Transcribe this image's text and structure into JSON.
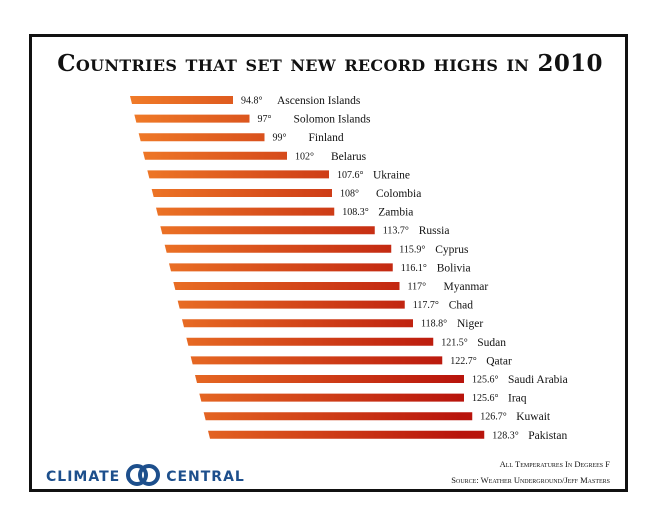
{
  "title": "Countries that set new record highs in 2010",
  "logo": {
    "left": "CLIMATE",
    "right": "CENTRAL",
    "color": "#1d4f8c"
  },
  "note": "All Temperatures In Degrees F",
  "source": "Source: Weather Underground/Jeff Masters",
  "chart_data": {
    "type": "bar",
    "orientation": "horizontal",
    "title": "Countries that set new record highs in 2010",
    "categories": [
      "Ascension Islands",
      "Solomon Islands",
      "Finland",
      "Belarus",
      "Ukraine",
      "Colombia",
      "Zambia",
      "Russia",
      "Cyprus",
      "Bolivia",
      "Myanmar",
      "Chad",
      "Niger",
      "Sudan",
      "Qatar",
      "Saudi Arabia",
      "Iraq",
      "Kuwait",
      "Pakistan"
    ],
    "values": [
      94.8,
      97,
      99,
      102,
      107.6,
      108,
      108.3,
      113.7,
      115.9,
      116.1,
      117,
      117.7,
      118.8,
      121.5,
      122.7,
      125.6,
      125.6,
      126.7,
      128.3
    ],
    "value_labels": [
      "94.8°",
      "97°",
      "99°",
      "102°",
      "107.6°",
      "108°",
      "108.3°",
      "113.7°",
      "115.9°",
      "116.1°",
      "117°",
      "117.7°",
      "118.8°",
      "121.5°",
      "122.7°",
      "125.6°",
      "125.6°",
      "126.7°",
      "128.3°"
    ],
    "unit": "Degrees F",
    "grid": false,
    "legend": "none",
    "colors": {
      "cool_start": "#f07b28",
      "hot_end": "#b8140c"
    }
  }
}
